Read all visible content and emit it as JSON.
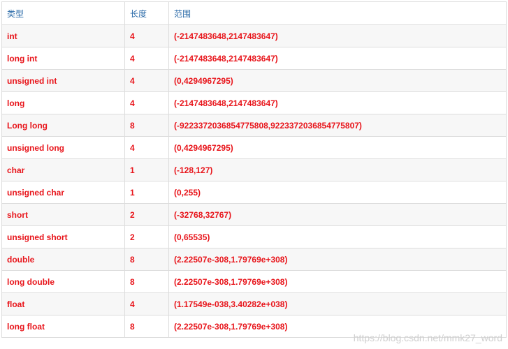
{
  "table": {
    "headers": [
      "类型",
      "长度",
      "范围"
    ],
    "rows": [
      [
        "int",
        "4",
        "(-2147483648,2147483647)"
      ],
      [
        "long int",
        "4",
        "(-2147483648,2147483647)"
      ],
      [
        "unsigned int",
        "4",
        "(0,4294967295)"
      ],
      [
        "long",
        "4",
        "(-2147483648,2147483647)"
      ],
      [
        "Long long",
        "8",
        "(-9223372036854775808,9223372036854775807)"
      ],
      [
        "unsigned long",
        "4",
        "(0,4294967295)"
      ],
      [
        "char",
        "1",
        "(-128,127)"
      ],
      [
        "unsigned char",
        "1",
        "(0,255)"
      ],
      [
        "short",
        "2",
        "(-32768,32767)"
      ],
      [
        "unsigned short",
        "2",
        "(0,65535)"
      ],
      [
        "double",
        "8",
        "(2.22507e-308,1.79769e+308)"
      ],
      [
        "long double",
        "8",
        "(2.22507e-308,1.79769e+308)"
      ],
      [
        "float",
        "4",
        "(1.17549e-038,3.40282e+038)"
      ],
      [
        "long float",
        "8",
        "(2.22507e-308,1.79769e+308)"
      ]
    ]
  },
  "watermark": "https://blog.csdn.net/mmk27_word",
  "colors": {
    "header_text": "#2a6aa8",
    "cell_text": "#e8151b",
    "stripe": "#f7f7f7",
    "border": "#dddddd"
  }
}
